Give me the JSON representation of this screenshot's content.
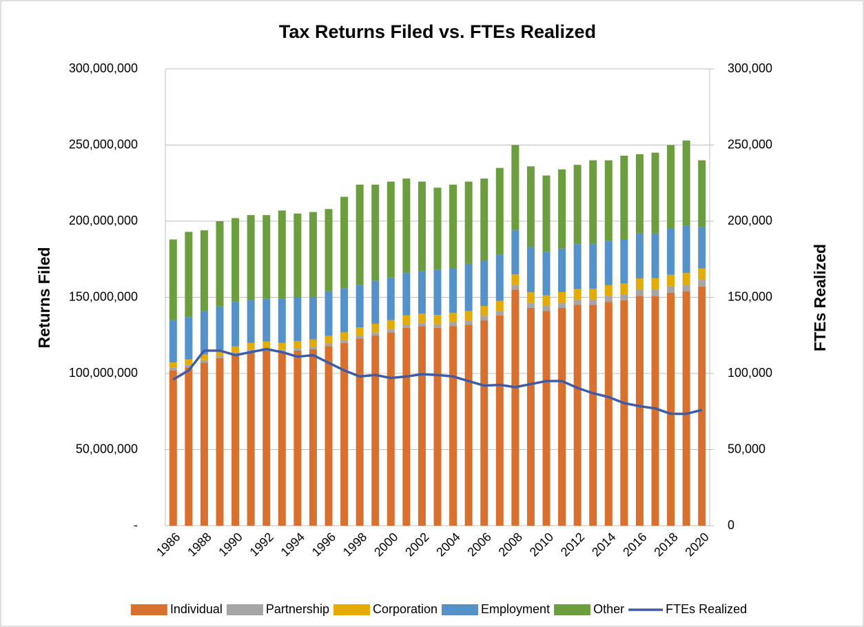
{
  "chart_data": {
    "type": "bar",
    "stacked": true,
    "title": "Tax Returns Filed vs. FTEs Realized",
    "y_label": "Returns Filed",
    "y2_label": "FTEs Realized",
    "categories": [
      "1986",
      null,
      "1988",
      null,
      "1990",
      null,
      "1992",
      null,
      "1994",
      null,
      "1996",
      null,
      "1998",
      null,
      "2000",
      null,
      "2002",
      null,
      "2004",
      null,
      "2006",
      null,
      "2008",
      null,
      "2010",
      null,
      "2012",
      null,
      "2014",
      null,
      "2016",
      null,
      "2018",
      null,
      "2020"
    ],
    "series": [
      {
        "name": "Individual",
        "color": "#d8702f",
        "values": [
          102000000,
          104000000,
          107000000,
          110000000,
          112000000,
          114000000,
          115000000,
          114000000,
          115000000,
          116000000,
          118000000,
          120000000,
          123000000,
          125000000,
          127000000,
          130000000,
          131000000,
          130000000,
          131000000,
          132000000,
          135000000,
          138000000,
          155000000,
          143000000,
          141000000,
          143000000,
          145000000,
          145000000,
          147000000,
          148000000,
          151000000,
          151000000,
          153000000,
          154000000,
          157000000
        ]
      },
      {
        "name": "Partnership",
        "color": "#a5a5a5",
        "values": [
          1700000,
          1700000,
          1700000,
          1600000,
          1600000,
          1600000,
          1500000,
          1500000,
          1600000,
          1600000,
          1700000,
          1800000,
          1900000,
          2000000,
          2100000,
          2100000,
          2200000,
          2300000,
          2500000,
          2700000,
          2900000,
          3100000,
          3200000,
          3300000,
          3300000,
          3400000,
          3500000,
          3600000,
          3700000,
          3800000,
          4000000,
          4100000,
          4200000,
          4300000,
          4500000
        ]
      },
      {
        "name": "Corporation",
        "color": "#e5ab05",
        "values": [
          3500000,
          3600000,
          3800000,
          4000000,
          4200000,
          4400000,
          4500000,
          4600000,
          4700000,
          4800000,
          5000000,
          5200000,
          5400000,
          5600000,
          5900000,
          6000000,
          6100000,
          6100000,
          6200000,
          6300000,
          6400000,
          6600000,
          6800000,
          7000000,
          7000000,
          7000000,
          7000000,
          7100000,
          7200000,
          7300000,
          7400000,
          7500000,
          7600000,
          7700000,
          7500000
        ]
      },
      {
        "name": "Employment",
        "color": "#5592c9",
        "values": [
          27800000,
          27700000,
          28500000,
          28400000,
          29200000,
          28000000,
          28000000,
          28900000,
          28700000,
          27600000,
          29300000,
          29000000,
          27700000,
          28400000,
          28000000,
          27900000,
          27700000,
          29600000,
          29300000,
          31000000,
          29700000,
          30300000,
          29000000,
          29700000,
          28700000,
          28600000,
          29500000,
          29300000,
          29100000,
          28900000,
          29600000,
          29400000,
          30200000,
          31000000,
          27000000
        ]
      },
      {
        "name": "Other",
        "color": "#6c9d3f",
        "values": [
          53000000,
          56000000,
          53000000,
          56000000,
          55000000,
          56000000,
          55000000,
          58000000,
          55000000,
          56000000,
          54000000,
          60000000,
          66000000,
          63000000,
          63000000,
          62000000,
          59000000,
          54000000,
          55000000,
          54000000,
          54000000,
          57000000,
          56000000,
          53000000,
          50000000,
          52000000,
          52000000,
          55000000,
          53000000,
          55000000,
          52000000,
          53000000,
          55000000,
          56000000,
          44000000
        ]
      },
      {
        "name": "FTEs Realized",
        "color": "#3e5ba8",
        "type": "line",
        "axis": "y2",
        "values": [
          96000,
          102000,
          115000,
          115000,
          112000,
          114000,
          116000,
          114000,
          111000,
          112000,
          107000,
          102000,
          98000,
          99000,
          97000,
          98000,
          99500,
          99000,
          98000,
          95000,
          92000,
          92500,
          91000,
          93000,
          95000,
          95000,
          90500,
          87000,
          84500,
          80500,
          78500,
          77000,
          73500,
          73500,
          76000
        ]
      }
    ],
    "ylim": [
      0,
      300000000
    ],
    "yticks": [
      {
        "value": 0,
        "label": "-"
      },
      {
        "value": 50000000,
        "label": "50,000,000"
      },
      {
        "value": 100000000,
        "label": "100,000,000"
      },
      {
        "value": 150000000,
        "label": "150,000,000"
      },
      {
        "value": 200000000,
        "label": "200,000,000"
      },
      {
        "value": 250000000,
        "label": "250,000,000"
      },
      {
        "value": 300000000,
        "label": "300,000,000"
      }
    ],
    "y2lim": [
      0,
      300000
    ],
    "y2ticks": [
      0,
      {
        "value": 50000,
        "label": "50,000"
      },
      {
        "value": 100000,
        "label": "100,000"
      },
      {
        "value": 150000,
        "label": "150,000"
      },
      {
        "value": 200000,
        "label": "200,000"
      },
      {
        "value": 250000,
        "label": "250,000"
      },
      {
        "value": 300000,
        "label": "300,000"
      }
    ],
    "grid": true,
    "legend": "bottom"
  }
}
